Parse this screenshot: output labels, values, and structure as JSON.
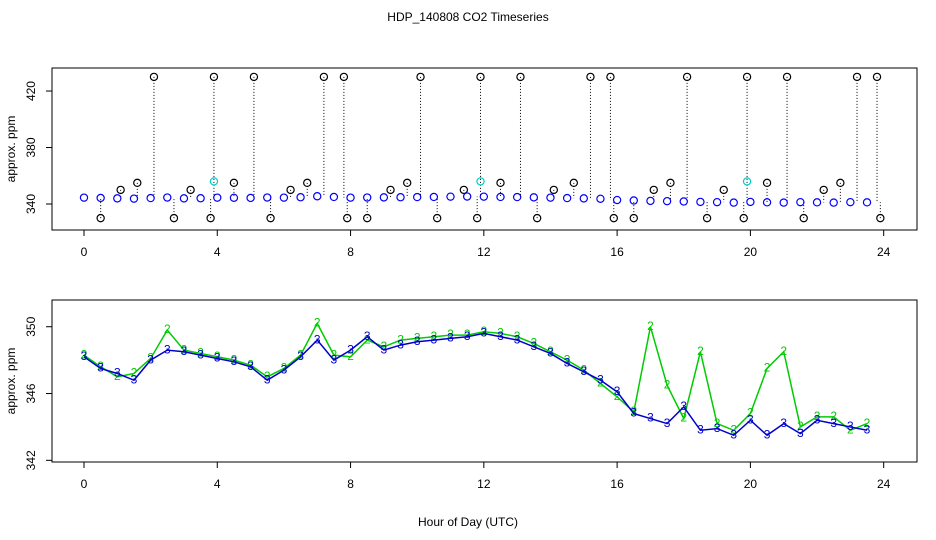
{
  "chart_data": [
    {
      "type": "scatter",
      "title": "HDP_140808  CO2 Timeseries",
      "ylabel": "approx. ppm",
      "xlim": [
        -0.96,
        25.0
      ],
      "xticks": [
        0,
        4,
        8,
        12,
        16,
        20,
        24
      ],
      "ylim": [
        321.6,
        436.3
      ],
      "yticks": [
        340,
        380,
        420
      ],
      "series": [
        {
          "color": "#0000ff",
          "marker": "circle",
          "x": [
            0,
            0.5,
            1,
            1.5,
            2,
            2.5,
            3,
            3.5,
            4,
            4.5,
            5,
            5.5,
            6,
            6.5,
            7,
            7.5,
            8,
            8.5,
            9,
            9.5,
            10,
            10.5,
            11,
            11.5,
            12,
            12.5,
            13,
            13.5,
            14,
            14.5,
            15,
            15.5,
            16,
            16.5,
            17,
            17.5,
            18,
            18.5,
            19,
            19.5,
            20,
            20.5,
            21,
            21.5,
            22,
            22.5,
            23,
            23.5
          ],
          "values": [
            344.5,
            344.3,
            344,
            343.8,
            344.2,
            344.6,
            344,
            344.1,
            344.5,
            344.4,
            344.3,
            344.6,
            344.5,
            344.8,
            345.5,
            345,
            344.5,
            344.6,
            344.7,
            344.8,
            344.9,
            345,
            345.2,
            345.3,
            345.2,
            345,
            344.9,
            344.7,
            344.5,
            344.2,
            344,
            343.7,
            342.8,
            342.5,
            342.2,
            342,
            341.8,
            341.5,
            341.3,
            341,
            341.5,
            341.2,
            341,
            341.3,
            341.2,
            341,
            341.3,
            341.2
          ]
        },
        {
          "color": "#000000",
          "marker": "circle",
          "drop_lines": true,
          "x": [
            2.1,
            3.9,
            5.1,
            7.2,
            7.8,
            10.1,
            11.9,
            13.1,
            15.2,
            15.8,
            18.1,
            19.9,
            21.1,
            23.2,
            23.8,
            0.5,
            2.7,
            3.8,
            5.6,
            7.9,
            8.5,
            10.6,
            11.8,
            13.6,
            15.9,
            16.5,
            18.7,
            19.8,
            21.6,
            23.9,
            1.6,
            4.5,
            6.7,
            9.7,
            12.5,
            14.7,
            17.6,
            20.5,
            22.7,
            1.1,
            3.2,
            6.2,
            9.2,
            11.4,
            14.1,
            17.1,
            19.2,
            22.2
          ],
          "values": [
            430,
            430,
            430,
            430,
            430,
            430,
            430,
            430,
            430,
            430,
            430,
            430,
            430,
            430,
            430,
            330,
            330,
            330,
            330,
            330,
            330,
            330,
            330,
            330,
            330,
            330,
            330,
            330,
            330,
            330,
            355,
            355,
            355,
            355,
            355,
            355,
            355,
            355,
            355,
            350,
            350,
            350,
            350,
            350,
            350,
            350,
            350,
            350
          ]
        },
        {
          "color": "#00cccc",
          "marker": "circle",
          "x": [
            3.9,
            11.9,
            19.9
          ],
          "values": [
            356,
            356,
            356
          ]
        }
      ]
    },
    {
      "type": "line",
      "ylabel": "approx. ppm",
      "xlabel": "Hour of Day (UTC)",
      "xlim": [
        -0.96,
        25.0
      ],
      "xticks": [
        0,
        4,
        8,
        12,
        16,
        20,
        24
      ],
      "ylim": [
        341.9,
        351.6
      ],
      "yticks": [
        342,
        346,
        350
      ],
      "series": [
        {
          "color": "#00cc00",
          "marker": "2",
          "x": [
            0,
            0.5,
            1,
            1.5,
            2,
            2.5,
            3,
            3.5,
            4,
            4.5,
            5,
            5.5,
            6,
            6.5,
            7,
            7.5,
            8,
            8.5,
            9,
            9.5,
            10,
            10.5,
            11,
            11.5,
            12,
            12.5,
            13,
            13.5,
            14,
            14.5,
            15,
            15.5,
            16,
            16.5,
            17,
            17.5,
            18,
            18.5,
            19,
            19.5,
            20,
            20.5,
            21,
            21.5,
            22,
            22.5,
            23,
            23.5
          ],
          "values": [
            348.3,
            347.6,
            347.0,
            347.2,
            348.1,
            349.8,
            348.6,
            348.4,
            348.2,
            348.0,
            347.7,
            347.0,
            347.5,
            348.3,
            350.2,
            348.3,
            348.2,
            349.2,
            348.8,
            349.2,
            349.3,
            349.4,
            349.5,
            349.5,
            349.7,
            349.6,
            349.4,
            349.0,
            348.5,
            348.0,
            347.4,
            346.6,
            345.8,
            344.9,
            350.0,
            346.5,
            344.5,
            348.5,
            344.2,
            343.8,
            344.8,
            347.5,
            348.5,
            344.0,
            344.6,
            344.6,
            343.8,
            344.2
          ]
        },
        {
          "color": "#0000cc",
          "marker": "3",
          "x": [
            0,
            0.5,
            1,
            1.5,
            2,
            2.5,
            3,
            3.5,
            4,
            4.5,
            5,
            5.5,
            6,
            6.5,
            7,
            7.5,
            8,
            8.5,
            9,
            9.5,
            10,
            10.5,
            11,
            11.5,
            12,
            12.5,
            13,
            13.5,
            14,
            14.5,
            15,
            15.5,
            16,
            16.5,
            17,
            17.5,
            18,
            18.5,
            19,
            19.5,
            20,
            20.5,
            21,
            21.5,
            22,
            22.5,
            23,
            23.5
          ],
          "values": [
            348.2,
            347.5,
            347.2,
            346.8,
            348,
            348.6,
            348.5,
            348.3,
            348.1,
            347.9,
            347.6,
            346.8,
            347.4,
            348.2,
            349.2,
            348,
            348.6,
            349.4,
            348.6,
            348.9,
            349.1,
            349.2,
            349.3,
            349.4,
            349.6,
            349.4,
            349.2,
            348.8,
            348.4,
            347.8,
            347.3,
            346.8,
            346.1,
            344.8,
            344.5,
            344.2,
            345.2,
            343.8,
            343.9,
            343.5,
            344.4,
            343.5,
            344.2,
            343.6,
            344.4,
            344.2,
            344.0,
            343.8
          ]
        }
      ]
    }
  ]
}
